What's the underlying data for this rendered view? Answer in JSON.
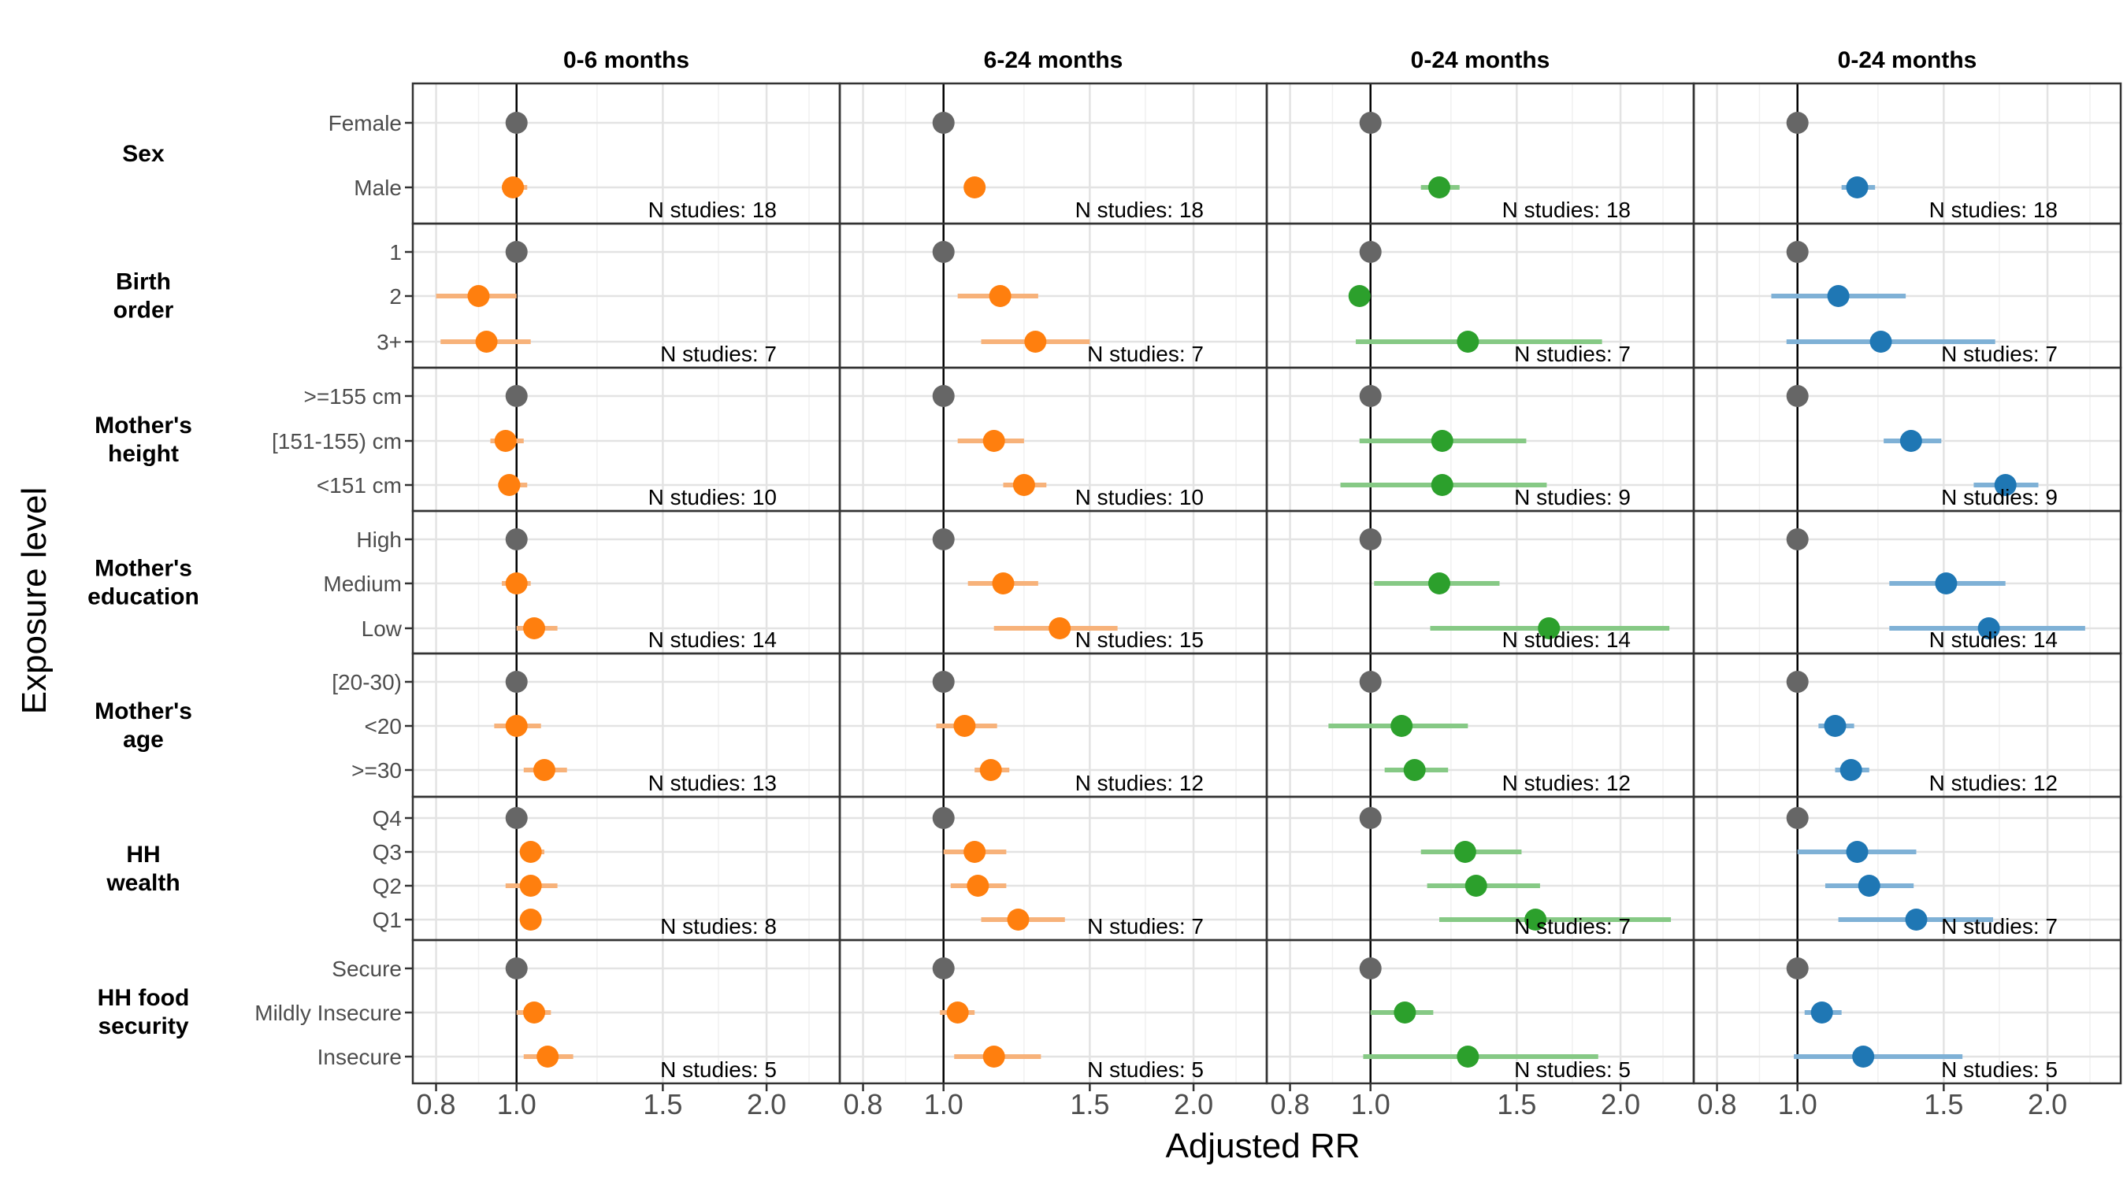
{
  "chart_data": {
    "type": "scatter",
    "xlabel": "Adjusted RR",
    "ylabel": "Exposure level",
    "x_scale": "log",
    "xlim": [
      0.75,
      2.45
    ],
    "x_ticks": [
      0.8,
      1.0,
      1.5,
      2.0
    ],
    "x_tick_labels": [
      "0.8",
      "1.0",
      "1.5",
      "2.0"
    ],
    "reference_line": 1.0,
    "grid": true,
    "legend": "none",
    "reference_color": "#666666",
    "columns": [
      {
        "title": "0-6 months",
        "color": "#ff7f0e",
        "ci_color": "#f7b27a"
      },
      {
        "title": "6-24 months",
        "color": "#ff7f0e",
        "ci_color": "#f7b27a"
      },
      {
        "title": "0-24 months",
        "color": "#2ca02c",
        "ci_color": "#86c985"
      },
      {
        "title": "0-24 months",
        "color": "#1f77b4",
        "ci_color": "#7fb1d6"
      }
    ],
    "groups": [
      {
        "label": "Sex",
        "levels": [
          "Female",
          "Male"
        ],
        "n_labels": [
          "N studies: 18",
          "N studies: 18",
          "N studies: 18",
          "N studies: 18"
        ],
        "estimates": [
          [
            [
              1.0,
              1.0,
              1.0
            ],
            [
              0.99,
              0.96,
              1.03
            ]
          ],
          [
            [
              1.0,
              1.0,
              1.0
            ],
            [
              1.09,
              1.06,
              1.12
            ]
          ],
          [
            [
              1.0,
              1.0,
              1.0
            ],
            [
              1.21,
              1.15,
              1.28
            ]
          ],
          [
            [
              1.0,
              1.0,
              1.0
            ],
            [
              1.18,
              1.13,
              1.24
            ]
          ]
        ]
      },
      {
        "label": "Birth order",
        "levels": [
          "1",
          "2",
          "3+"
        ],
        "n_labels": [
          "N studies: 7",
          "N studies: 7",
          "N studies: 7",
          "N studies: 7"
        ],
        "estimates": [
          [
            [
              1.0,
              1.0,
              1.0
            ],
            [
              0.9,
              0.8,
              1.0
            ],
            [
              0.92,
              0.81,
              1.04
            ]
          ],
          [
            [
              1.0,
              1.0,
              1.0
            ],
            [
              1.17,
              1.04,
              1.3
            ],
            [
              1.29,
              1.11,
              1.5
            ]
          ],
          [
            [
              1.0,
              1.0,
              1.0
            ],
            [
              0.97,
              0.97,
              0.97
            ],
            [
              1.31,
              0.96,
              1.9
            ]
          ],
          [
            [
              1.0,
              1.0,
              1.0
            ],
            [
              1.12,
              0.93,
              1.35
            ],
            [
              1.26,
              0.97,
              1.73
            ]
          ]
        ]
      },
      {
        "label": "Mother's height",
        "levels": [
          ">=155 cm",
          "[151-155) cm",
          "<151 cm"
        ],
        "n_labels": [
          "N studies: 10",
          "N studies: 10",
          "N studies: 9",
          "N studies: 9"
        ],
        "estimates": [
          [
            [
              1.0,
              1.0,
              1.0
            ],
            [
              0.97,
              0.93,
              1.02
            ],
            [
              0.98,
              0.95,
              1.03
            ]
          ],
          [
            [
              1.0,
              1.0,
              1.0
            ],
            [
              1.15,
              1.04,
              1.25
            ],
            [
              1.25,
              1.18,
              1.33
            ]
          ],
          [
            [
              1.0,
              1.0,
              1.0
            ],
            [
              1.22,
              0.97,
              1.54
            ],
            [
              1.22,
              0.92,
              1.63
            ]
          ],
          [
            [
              1.0,
              1.0,
              1.0
            ],
            [
              1.37,
              1.27,
              1.49
            ],
            [
              1.78,
              1.63,
              1.95
            ]
          ]
        ]
      },
      {
        "label": "Mother's education",
        "levels": [
          "High",
          "Medium",
          "Low"
        ],
        "n_labels": [
          "N studies: 14",
          "N studies: 15",
          "N studies: 14",
          "N studies: 14"
        ],
        "estimates": [
          [
            [
              1.0,
              1.0,
              1.0
            ],
            [
              1.0,
              0.96,
              1.04
            ],
            [
              1.05,
              1.0,
              1.12
            ]
          ],
          [
            [
              1.0,
              1.0,
              1.0
            ],
            [
              1.18,
              1.07,
              1.3
            ],
            [
              1.38,
              1.15,
              1.62
            ]
          ],
          [
            [
              1.0,
              1.0,
              1.0
            ],
            [
              1.21,
              1.01,
              1.43
            ],
            [
              1.64,
              1.18,
              2.29
            ]
          ],
          [
            [
              1.0,
              1.0,
              1.0
            ],
            [
              1.51,
              1.29,
              1.78
            ],
            [
              1.7,
              1.29,
              2.22
            ]
          ]
        ]
      },
      {
        "label": "Mother's age",
        "levels": [
          "[20-30)",
          "<20",
          ">=30"
        ],
        "n_labels": [
          "N studies: 13",
          "N studies: 12",
          "N studies: 12",
          "N studies: 12"
        ],
        "estimates": [
          [
            [
              1.0,
              1.0,
              1.0
            ],
            [
              1.0,
              0.94,
              1.07
            ],
            [
              1.08,
              1.02,
              1.15
            ]
          ],
          [
            [
              1.0,
              1.0,
              1.0
            ],
            [
              1.06,
              0.98,
              1.16
            ],
            [
              1.14,
              1.09,
              1.2
            ]
          ],
          [
            [
              1.0,
              1.0,
              1.0
            ],
            [
              1.09,
              0.89,
              1.31
            ],
            [
              1.13,
              1.04,
              1.24
            ]
          ],
          [
            [
              1.0,
              1.0,
              1.0
            ],
            [
              1.11,
              1.06,
              1.17
            ],
            [
              1.16,
              1.11,
              1.22
            ]
          ]
        ]
      },
      {
        "label": "HH wealth",
        "levels": [
          "Q4",
          "Q3",
          "Q2",
          "Q1"
        ],
        "n_labels": [
          "N studies: 8",
          "N studies: 7",
          "N studies: 7",
          "N studies: 7"
        ],
        "estimates": [
          [
            [
              1.0,
              1.0,
              1.0
            ],
            [
              1.04,
              1.01,
              1.08
            ],
            [
              1.04,
              0.97,
              1.12
            ],
            [
              1.04,
              1.01,
              1.07
            ]
          ],
          [
            [
              1.0,
              1.0,
              1.0
            ],
            [
              1.09,
              1.0,
              1.19
            ],
            [
              1.1,
              1.02,
              1.19
            ],
            [
              1.23,
              1.11,
              1.4
            ]
          ],
          [
            [
              1.0,
              1.0,
              1.0
            ],
            [
              1.3,
              1.15,
              1.52
            ],
            [
              1.34,
              1.17,
              1.6
            ],
            [
              1.58,
              1.21,
              2.3
            ]
          ],
          [
            [
              1.0,
              1.0,
              1.0
            ],
            [
              1.18,
              1.0,
              1.39
            ],
            [
              1.22,
              1.08,
              1.38
            ],
            [
              1.39,
              1.12,
              1.72
            ]
          ]
        ]
      },
      {
        "label": "HH food security",
        "levels": [
          "Secure",
          "Mildly Insecure",
          "Insecure"
        ],
        "n_labels": [
          "N studies: 5",
          "N studies: 5",
          "N studies: 5",
          "N studies: 5"
        ],
        "estimates": [
          [
            [
              1.0,
              1.0,
              1.0
            ],
            [
              1.05,
              1.0,
              1.1
            ],
            [
              1.09,
              1.02,
              1.17
            ]
          ],
          [
            [
              1.0,
              1.0,
              1.0
            ],
            [
              1.04,
              0.99,
              1.09
            ],
            [
              1.15,
              1.03,
              1.31
            ]
          ],
          [
            [
              1.0,
              1.0,
              1.0
            ],
            [
              1.1,
              1.0,
              1.19
            ],
            [
              1.31,
              0.98,
              1.88
            ]
          ],
          [
            [
              1.0,
              1.0,
              1.0
            ],
            [
              1.07,
              1.02,
              1.13
            ],
            [
              1.2,
              0.99,
              1.58
            ]
          ]
        ]
      }
    ]
  }
}
